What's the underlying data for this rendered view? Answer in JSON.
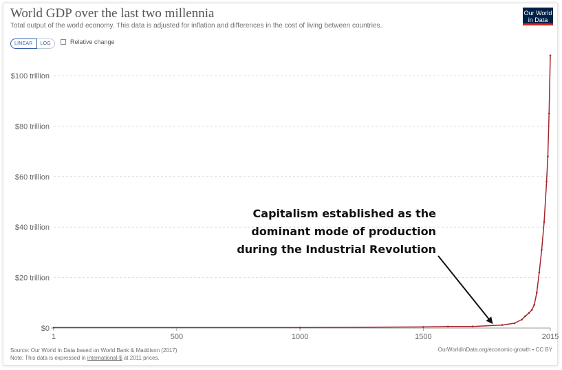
{
  "header": {
    "title": "World GDP over the last two millennia",
    "subtitle": "Total output of the world economy. This data is adjusted for inflation and differences in the cost of living between countries.",
    "logo_line1": "Our World",
    "logo_line2": "in Data"
  },
  "controls": {
    "linear_label": "LINEAR",
    "log_label": "LOG",
    "relative_change_label": "Relative change",
    "scale_selected": "LINEAR",
    "relative_change_checked": false
  },
  "annotation": {
    "lines": [
      "Capitalism established as the",
      "dominant mode of production",
      "during the Industrial Revolution"
    ]
  },
  "footer": {
    "source": "Source: Our World In Data based on World Bank & Maddison (2017)",
    "note_prefix": "Note: This data is expressed in ",
    "note_link": "international-$",
    "note_suffix": " at 2011 prices.",
    "right": "OurWorldInData.org/economic-growth • CC BY"
  },
  "colors": {
    "line": "#a2262e",
    "grid": "#dddddd",
    "brand": "#002147",
    "brand_accent": "#ce261e"
  },
  "chart_data": {
    "type": "line",
    "title": "World GDP over the last two millennia",
    "xlabel": "",
    "ylabel": "",
    "xlim": [
      1,
      2015
    ],
    "ylim": [
      0,
      100000000000000
    ],
    "x_ticks": [
      {
        "value": 1,
        "label": "1"
      },
      {
        "value": 500,
        "label": "500"
      },
      {
        "value": 1000,
        "label": "1000"
      },
      {
        "value": 1500,
        "label": "1500"
      },
      {
        "value": 2015,
        "label": "2015"
      }
    ],
    "y_ticks": [
      {
        "value": 0,
        "label": "$0"
      },
      {
        "value": 20000000000000,
        "label": "$20 trillion"
      },
      {
        "value": 40000000000000,
        "label": "$40 trillion"
      },
      {
        "value": 60000000000000,
        "label": "$60 trillion"
      },
      {
        "value": 80000000000000,
        "label": "$80 trillion"
      },
      {
        "value": 100000000000000,
        "label": "$100 trillion"
      }
    ],
    "grid": true,
    "series": [
      {
        "x": [
          1,
          1000,
          1500,
          1600,
          1700,
          1820,
          1870,
          1900,
          1913,
          1929,
          1940,
          1950,
          1960,
          1970,
          1980,
          1990,
          2000,
          2005,
          2010,
          2015
        ],
        "y": [
          180000000000,
          210000000000,
          430000000000,
          600000000000,
          640000000000,
          1200000000000,
          1900000000000,
          3400000000000,
          4700000000000,
          6000000000000,
          7200000000000,
          9200000000000,
          14000000000000,
          22000000000000,
          31000000000000,
          42000000000000,
          58000000000000,
          68000000000000,
          85000000000000,
          108000000000000
        ]
      }
    ]
  }
}
